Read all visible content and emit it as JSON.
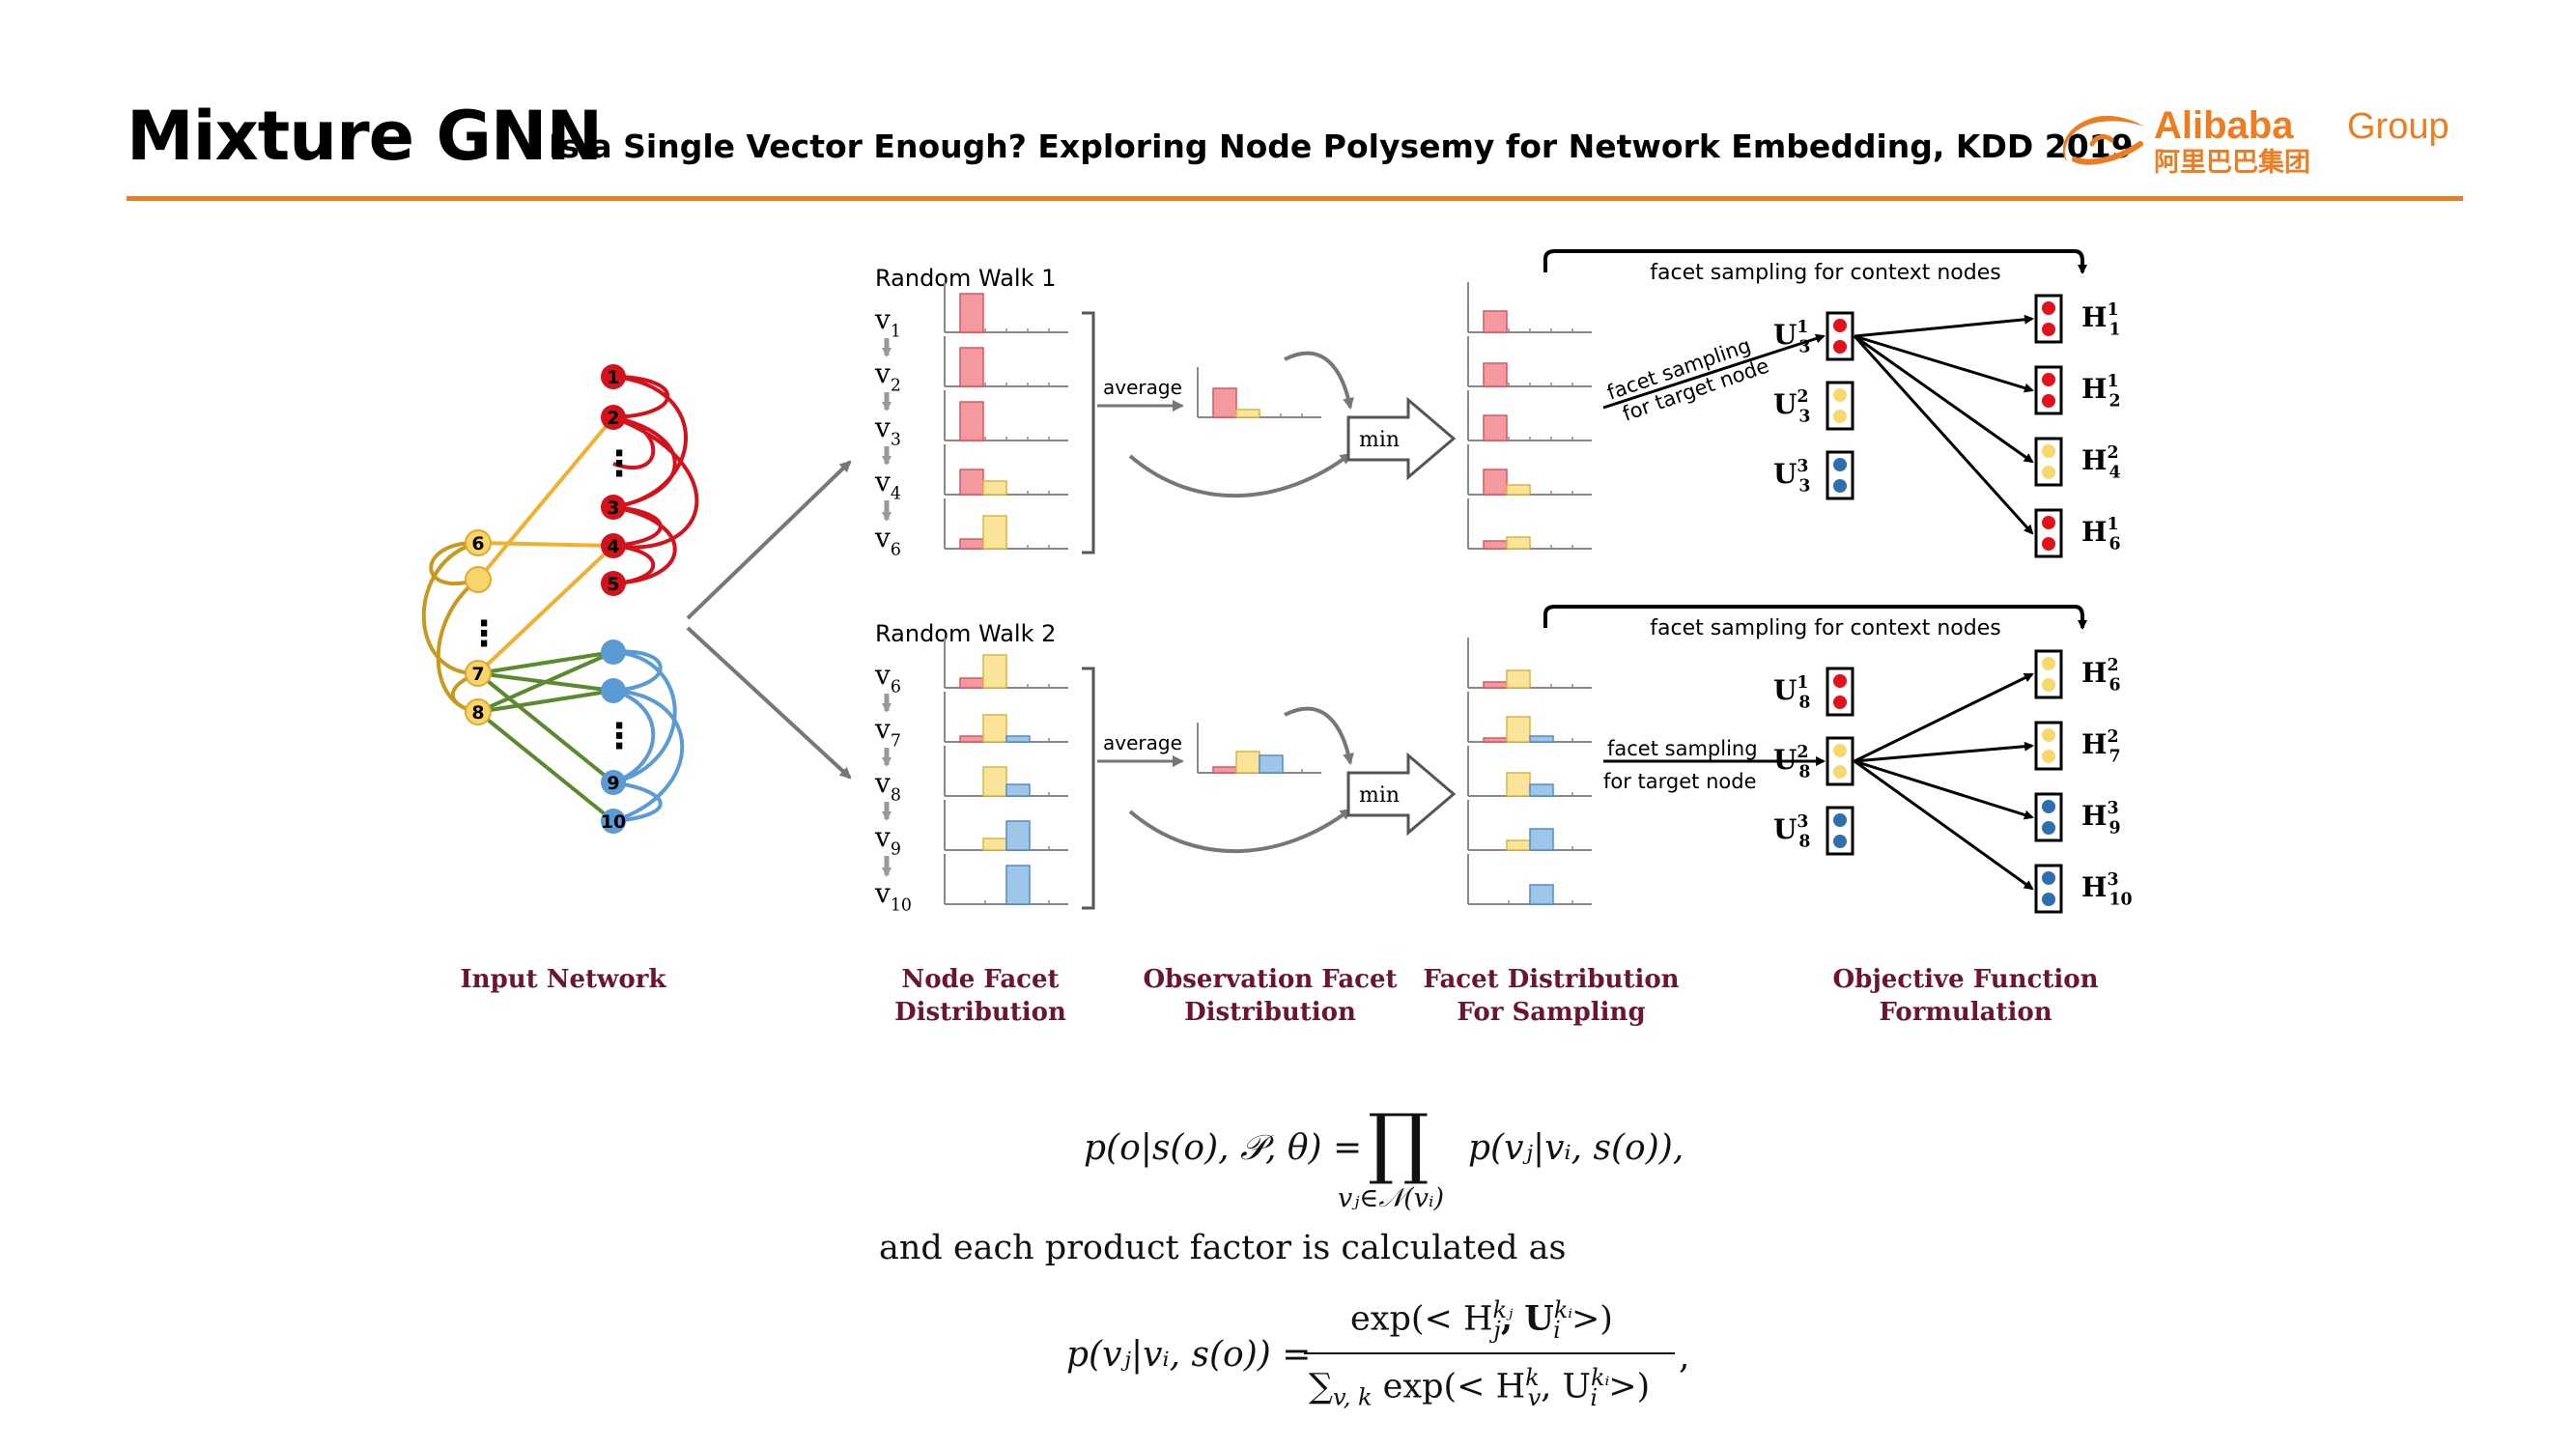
{
  "header": {
    "title": "Mixture GNN",
    "subtitle": "Is a Single Vector Enough? Exploring Node Polysemy for Network Embedding, KDD 2019",
    "logo_text_en": "Alibaba",
    "logo_text_group": "Group",
    "logo_text_cn": "阿里巴巴集团",
    "accent_color": "#ee7d22"
  },
  "network": {
    "caption": "Input Network",
    "red_nodes": [
      "1",
      "2",
      "3",
      "4",
      "5"
    ],
    "yellow_nodes": [
      "6",
      "7",
      "8"
    ],
    "blue_nodes": [
      "9",
      "10"
    ],
    "ellipsis": "⋮",
    "colors": {
      "red": "#d3121b",
      "yellow": "#f3c646",
      "yellow_edge": "#e3a72a",
      "olive": "#c79a1e",
      "green": "#5b8a2e",
      "blue": "#5b9bd5"
    }
  },
  "walks": [
    {
      "title": "Random Walk 1",
      "nodes": [
        {
          "base": "v",
          "sub": "1"
        },
        {
          "base": "v",
          "sub": "2"
        },
        {
          "base": "v",
          "sub": "3"
        },
        {
          "base": "v",
          "sub": "4"
        },
        {
          "base": "v",
          "sub": "6"
        }
      ],
      "average_label": "average",
      "min_label": "min",
      "context_label": "facet sampling for context nodes",
      "target_label": "facet sampling for target node",
      "target_label_line1": "facet sampling",
      "target_label_line2": "for target node",
      "u_labels": [
        {
          "base": "U",
          "sub": "3",
          "sup": "1"
        },
        {
          "base": "U",
          "sub": "3",
          "sup": "2"
        },
        {
          "base": "U",
          "sub": "3",
          "sup": "3"
        }
      ],
      "h_labels": [
        {
          "base": "H",
          "sub": "1",
          "sup": "1"
        },
        {
          "base": "H",
          "sub": "2",
          "sup": "1"
        },
        {
          "base": "H",
          "sub": "4",
          "sup": "2"
        },
        {
          "base": "H",
          "sub": "6",
          "sup": "1"
        }
      ]
    },
    {
      "title": "Random Walk 2",
      "nodes": [
        {
          "base": "v",
          "sub": "6"
        },
        {
          "base": "v",
          "sub": "7"
        },
        {
          "base": "v",
          "sub": "8"
        },
        {
          "base": "v",
          "sub": "9"
        },
        {
          "base": "v",
          "sub": "10"
        }
      ],
      "average_label": "average",
      "min_label": "min",
      "context_label": "facet sampling for context nodes",
      "target_label_line1": "facet sampling",
      "target_label_line2": "for target node",
      "u_labels": [
        {
          "base": "U",
          "sub": "8",
          "sup": "1"
        },
        {
          "base": "U",
          "sub": "8",
          "sup": "2"
        },
        {
          "base": "U",
          "sub": "8",
          "sup": "3"
        }
      ],
      "h_labels": [
        {
          "base": "H",
          "sub": "6",
          "sup": "2"
        },
        {
          "base": "H",
          "sub": "7",
          "sup": "2"
        },
        {
          "base": "H",
          "sub": "9",
          "sup": "3"
        },
        {
          "base": "H",
          "sub": "10",
          "sup": "3"
        }
      ]
    }
  ],
  "captions": {
    "node_facet": [
      "Node Facet",
      "Distribution"
    ],
    "observation_facet": [
      "Observation Facet",
      "Distribution"
    ],
    "facet_sampling": [
      "Facet Distribution",
      "For Sampling"
    ],
    "objective": [
      "Objective Function",
      "Formulation"
    ],
    "color": "#6b1530"
  },
  "formulas": {
    "eq1_lhs": "p(o|s(o), 𝒫, θ) =",
    "eq1_prod": "∏",
    "eq1_under": "vⱼ∈𝒩(vᵢ)",
    "eq1_rhs": "p(vⱼ|vᵢ, s(o)),",
    "middle_text": "and each product factor is calculated as",
    "eq2_lhs": "p(vⱼ|vᵢ, s(o)) =",
    "eq2_num": "exp(< H",
    "eq2_num_sup": "kⱼ",
    "eq2_num_sub": "j",
    "eq2_num_u": ", U",
    "eq2_num_u_sup": "kᵢ",
    "eq2_num_u_sub": "i",
    "eq2_num_end": " >)",
    "eq2_den_sum": "∑",
    "eq2_den_sum_sub": "v, k",
    "eq2_den": " exp(< H",
    "eq2_den_sup": "k",
    "eq2_den_sub": "v",
    "eq2_den_u": ", U",
    "eq2_den_u_sup": "kᵢ",
    "eq2_den_u_sub": "i",
    "eq2_den_end": " >)",
    "eq2_end": ","
  }
}
